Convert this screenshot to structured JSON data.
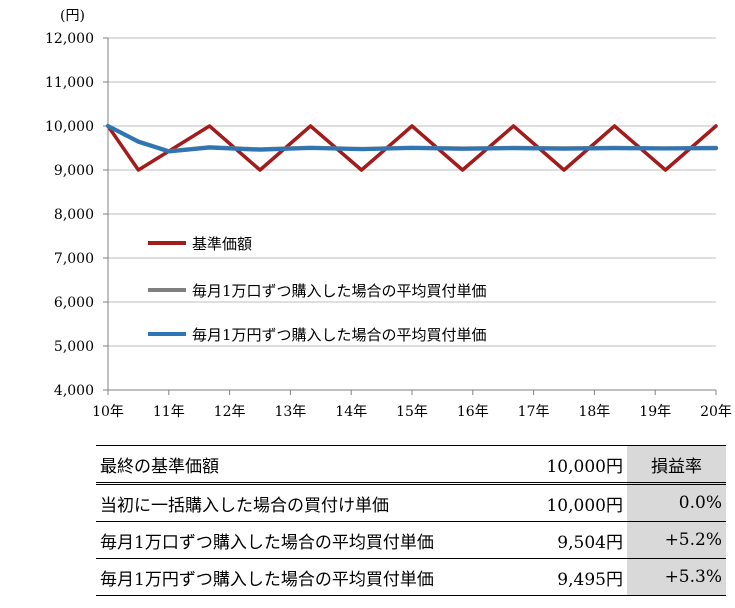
{
  "chart_data": {
    "type": "line",
    "y_unit_label": "(円)",
    "ylim": [
      4000,
      12000
    ],
    "y_ticks": [
      "4,000",
      "5,000",
      "6,000",
      "7,000",
      "8,000",
      "9,000",
      "10,000",
      "11,000",
      "12,000"
    ],
    "y_tick_values": [
      4000,
      5000,
      6000,
      7000,
      8000,
      9000,
      10000,
      11000,
      12000
    ],
    "x_ticks": [
      "10年",
      "11年",
      "12年",
      "13年",
      "14年",
      "15年",
      "16年",
      "17年",
      "18年",
      "19年",
      "20年"
    ],
    "xlim": [
      10,
      20
    ],
    "grid": "horizontal",
    "legend_position": "left-middle",
    "series": [
      {
        "name": "基準価額",
        "color": "#a31b1b",
        "x": [
          10,
          10.5,
          11.67,
          12.5,
          13.33,
          14.17,
          15,
          15.83,
          16.67,
          17.5,
          18.33,
          19.17,
          20
        ],
        "y": [
          10000,
          9000,
          10000,
          9000,
          10000,
          9000,
          10000,
          9000,
          10000,
          9000,
          10000,
          9000,
          10000
        ]
      },
      {
        "name": "毎月1万口ずつ購入した場合の平均買付単価",
        "color": "#7f7f7f",
        "x": [
          10,
          10.5,
          11,
          11.67,
          12.5,
          13.33,
          14.17,
          15,
          15.83,
          16.67,
          17.5,
          18.33,
          19.17,
          20
        ],
        "y": [
          10000,
          9650,
          9430,
          9520,
          9470,
          9510,
          9480,
          9510,
          9490,
          9505,
          9495,
          9505,
          9495,
          9504
        ]
      },
      {
        "name": "毎月1万円ずつ購入した場合の平均買付単価",
        "color": "#2e75b6",
        "x": [
          10,
          10.5,
          11,
          11.67,
          12.5,
          13.33,
          14.17,
          15,
          15.83,
          16.67,
          17.5,
          18.33,
          19.17,
          20
        ],
        "y": [
          10000,
          9640,
          9420,
          9510,
          9460,
          9500,
          9470,
          9500,
          9480,
          9495,
          9485,
          9495,
          9488,
          9495
        ]
      }
    ]
  },
  "summary_table": {
    "rows": [
      {
        "label": "最終の基準価額",
        "price": "10,000円",
        "rate": "損益率"
      },
      {
        "label": "当初に一括購入した場合の買付け単価",
        "price": "10,000円",
        "rate": "0.0%"
      },
      {
        "label": "毎月1万口ずつ購入した場合の平均買付単価",
        "price": "9,504円",
        "rate": "+5.2%"
      },
      {
        "label": "毎月1万円ずつ購入した場合の平均買付単価",
        "price": "9,495円",
        "rate": "+5.3%"
      }
    ]
  }
}
